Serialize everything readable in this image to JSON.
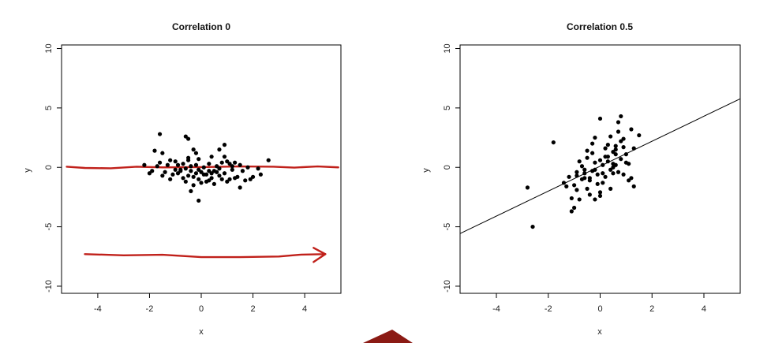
{
  "chart_data": [
    {
      "type": "scatter",
      "title": "Correlation 0",
      "xlabel": "x",
      "ylabel": "y",
      "xlim": [
        -5.4,
        5.4
      ],
      "ylim": [
        -10.6,
        10.3
      ],
      "xticks": [
        -4,
        -2,
        0,
        2,
        4
      ],
      "yticks": [
        -10,
        -5,
        0,
        5,
        10
      ],
      "grid": false,
      "annotations": [
        {
          "kind": "freehand-line",
          "color": "#c0201a",
          "x": [
            -5.2,
            -4.5,
            -3.5,
            -2.5,
            -1.5,
            0,
            1.5,
            2.8,
            3.6,
            4.5,
            5.3
          ],
          "y": [
            0.05,
            -0.05,
            -0.08,
            0.05,
            0.0,
            0.02,
            0.08,
            0.05,
            -0.02,
            0.08,
            0.0
          ]
        },
        {
          "kind": "freehand-arrow",
          "color": "#c0201a",
          "x": [
            -4.5,
            -3.0,
            -1.5,
            0,
            1.5,
            3.0,
            3.8,
            4.8
          ],
          "y": [
            -7.3,
            -7.4,
            -7.35,
            -7.55,
            -7.55,
            -7.5,
            -7.35,
            -7.3
          ]
        }
      ],
      "series": [
        {
          "color": "#000000",
          "x": [
            -1.6,
            -1.8,
            -0.6,
            -0.5,
            -1.5,
            -0.3,
            0.9,
            0.7,
            -0.2,
            -0.5,
            0.4,
            -1.2,
            1.0,
            1.3,
            2.6,
            1.1,
            0.8,
            -0.7,
            -0.9,
            -1.3,
            -1.7,
            -2.2,
            -0.4,
            0.1,
            0.6,
            1.5,
            1.8,
            2.2,
            0.3,
            -0.1,
            -0.6,
            -1.0,
            -0.8,
            0.0,
            0.5,
            1.2,
            1.6,
            -1.4,
            -0.2,
            0.2,
            -0.5,
            0.9,
            2.3,
            -2.0,
            -1.1,
            -0.3,
            0.4,
            0.7,
            1.4,
            -0.7,
            -0.1,
            0.3,
            0.8,
            1.0,
            -1.5,
            -0.9,
            -0.4,
            0.1,
            0.6,
            1.3,
            1.7,
            2.0,
            -1.9,
            -1.2,
            -0.6,
            0.0,
            0.5,
            1.1,
            -0.3,
            0.2,
            -0.8,
            0.4,
            1.5,
            -1.6,
            -0.5,
            0.9,
            -0.2,
            0.7,
            1.9,
            -1.0,
            -0.1,
            0.3,
            1.2,
            -0.4,
            -0.1
          ],
          "y": [
            2.8,
            1.4,
            2.6,
            2.4,
            1.2,
            1.5,
            1.9,
            1.5,
            1.2,
            0.8,
            0.9,
            0.6,
            0.5,
            0.4,
            0.6,
            0.3,
            0.4,
            0.3,
            0.2,
            0.2,
            0.1,
            0.2,
            0.1,
            0.0,
            0.1,
            0.2,
            0.0,
            -0.1,
            0.3,
            -0.2,
            -0.1,
            -0.2,
            -0.3,
            -0.4,
            -0.3,
            -0.2,
            -0.3,
            -0.4,
            -0.5,
            -0.6,
            -0.7,
            -0.5,
            -0.6,
            -0.5,
            -0.6,
            -0.8,
            -0.9,
            -0.7,
            -0.8,
            -0.9,
            -1.0,
            -1.1,
            -1.0,
            -1.2,
            -0.7,
            -0.5,
            -0.3,
            -0.6,
            -0.4,
            -0.9,
            -1.1,
            -0.8,
            -0.3,
            -1.0,
            -1.2,
            -1.3,
            -1.4,
            -1.0,
            -1.5,
            -1.2,
            -0.2,
            -0.5,
            -1.7,
            0.4,
            0.6,
            0.9,
            0.2,
            -0.1,
            -1.0,
            0.5,
            0.7,
            -0.3,
            0.1,
            -2.0,
            -2.8
          ]
        }
      ]
    },
    {
      "type": "scatter",
      "title": "Correlation 0.5",
      "xlabel": "x",
      "ylabel": "y",
      "xlim": [
        -5.4,
        5.4
      ],
      "ylim": [
        -10.6,
        10.3
      ],
      "xticks": [
        -4,
        -2,
        0,
        2,
        4
      ],
      "yticks": [
        -10,
        -5,
        0,
        5,
        10
      ],
      "grid": false,
      "fit_line": {
        "color": "#000000",
        "intercept": 0.1,
        "slope": 1.05
      },
      "series": [
        {
          "color": "#000000",
          "x": [
            -2.6,
            -2.8,
            -1.8,
            -1.4,
            -1.3,
            -1.2,
            -1.1,
            -1.0,
            -0.9,
            -0.8,
            -0.7,
            -0.6,
            -0.5,
            -0.4,
            -0.3,
            -0.2,
            -0.1,
            0.0,
            0.1,
            0.2,
            0.3,
            0.4,
            0.5,
            0.6,
            0.7,
            0.8,
            0.9,
            1.0,
            1.1,
            1.2,
            1.3,
            1.5,
            -1.0,
            -0.9,
            -0.7,
            -0.6,
            -0.5,
            -0.3,
            -0.2,
            0.0,
            0.1,
            0.3,
            0.5,
            0.6,
            0.8,
            1.0,
            -0.8,
            -0.5,
            -0.3,
            0.2,
            0.4,
            0.7,
            0.9,
            1.2,
            -0.4,
            0.0,
            0.3,
            0.6,
            0.8,
            -0.2,
            0.1,
            0.5,
            -0.6,
            -1.1,
            -0.1,
            0.4,
            0.7,
            1.1,
            -0.9,
            0.2,
            0.6,
            1.3,
            -0.4,
            0.0,
            0.9,
            -0.2,
            0.5
          ],
          "y": [
            -5.0,
            -1.7,
            2.1,
            -1.3,
            -1.6,
            -0.8,
            -2.6,
            -3.4,
            -1.9,
            -2.7,
            -1.0,
            -0.5,
            -1.8,
            -1.1,
            -0.3,
            0.4,
            -0.6,
            -2.4,
            0.2,
            0.9,
            0.5,
            -0.2,
            1.3,
            1.8,
            -0.4,
            0.7,
            2.4,
            1.1,
            0.3,
            3.2,
            1.6,
            2.7,
            -1.5,
            -0.7,
            0.1,
            -0.9,
            0.8,
            1.2,
            -0.2,
            0.6,
            -1.3,
            1.9,
            0.0,
            1.5,
            2.2,
            0.4,
            0.5,
            1.4,
            2.0,
            -0.8,
            2.6,
            3.0,
            1.7,
            -0.9,
            -2.3,
            4.1,
            0.9,
            1.1,
            4.3,
            2.5,
            -0.5,
            0.3,
            -0.2,
            -3.7,
            -1.4,
            -1.8,
            3.8,
            -1.1,
            -0.4,
            1.6,
            0.2,
            -1.6,
            -0.9,
            -2.1,
            -0.6,
            -2.7,
            -0.5
          ]
        }
      ]
    }
  ],
  "decoration": {
    "corner_shape_color": "#8b1a14"
  }
}
